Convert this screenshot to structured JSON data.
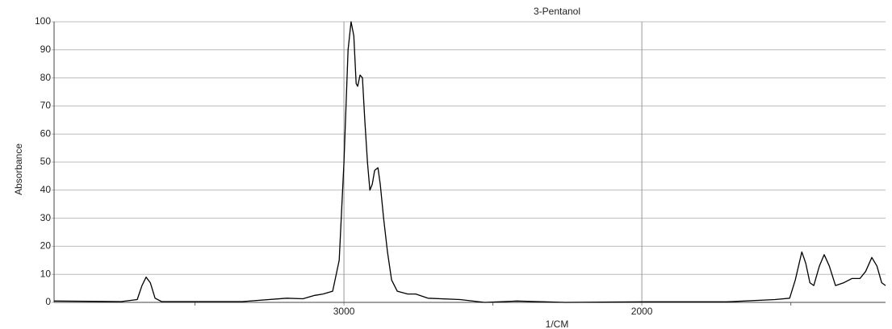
{
  "chart_data": {
    "type": "line",
    "title": "3-Pentanol",
    "x_label": "1/CM",
    "y_label": "Absorbance",
    "x": [
      3973,
      3748,
      3694,
      3678,
      3664,
      3650,
      3634,
      3612,
      3341,
      3192,
      3138,
      3098,
      3070,
      3038,
      3016,
      3000,
      2986,
      2976,
      2967,
      2959,
      2954,
      2946,
      2938,
      2930,
      2921,
      2913,
      2905,
      2897,
      2886,
      2878,
      2867,
      2854,
      2840,
      2821,
      2786,
      2759,
      2718,
      2610,
      2528,
      2420,
      2257,
      1986,
      1715,
      1553,
      1504,
      1485,
      1463,
      1450,
      1436,
      1423,
      1404,
      1388,
      1371,
      1350,
      1322,
      1295,
      1268,
      1249,
      1228,
      1211,
      1195,
      1182
    ],
    "series": [
      {
        "color": "#000000",
        "values": [
          0.5,
          0.3,
          1,
          6,
          9,
          7,
          1.5,
          0.3,
          0.3,
          1.5,
          1.3,
          2.5,
          3,
          4,
          15,
          50,
          90,
          100,
          95,
          78,
          77,
          81,
          80,
          65,
          50,
          40,
          42,
          47,
          48,
          42,
          30,
          18,
          8,
          4,
          3,
          3,
          1.5,
          1,
          0,
          0.5,
          0,
          0.2,
          0.2,
          1,
          1.5,
          8,
          18,
          14,
          7,
          6,
          13,
          17,
          13,
          6,
          7,
          8.5,
          8.5,
          11,
          16,
          13,
          7,
          6
        ]
      }
    ],
    "xlim": [
      3973,
      1182
    ],
    "xticks": [
      3000,
      2000
    ],
    "minor_xticks": [
      3500,
      2500,
      1500
    ],
    "ylim": [
      0,
      100
    ],
    "yticks": [
      0,
      10,
      20,
      30,
      40,
      50,
      60,
      70,
      80,
      90,
      100
    ],
    "grid": true
  }
}
